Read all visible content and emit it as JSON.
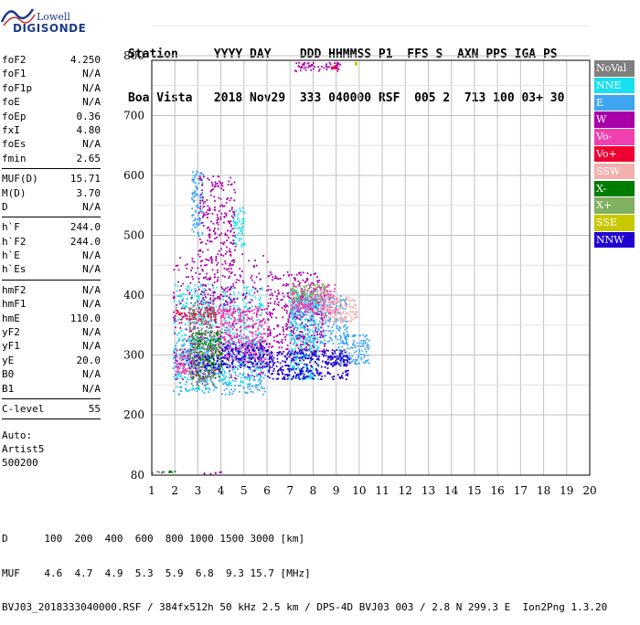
{
  "logo": {
    "line1": "Lowell",
    "line2": "DIGISONDE"
  },
  "header": {
    "line1": "Station     YYYY DAY    DDD HHMMSS P1  FFS S  AXN PPS IGA PS",
    "line2": "Boa Vista   2018 Nov29  333 040000 RSF  005 2  713 100 03+ 30"
  },
  "params_top": [
    {
      "label": "foF2",
      "value": "4.250"
    },
    {
      "label": "foF1",
      "value": "N/A"
    },
    {
      "label": "foF1p",
      "value": "N/A"
    },
    {
      "label": "foE",
      "value": "N/A"
    },
    {
      "label": "foEp",
      "value": "0.36"
    },
    {
      "label": "fxI",
      "value": "4.80"
    },
    {
      "label": "foEs",
      "value": "N/A"
    },
    {
      "label": "fmin",
      "value": "2.65"
    }
  ],
  "params_muf": [
    {
      "label": "MUF(D)",
      "value": "15.71"
    },
    {
      "label": "M(D)",
      "value": "3.70"
    },
    {
      "label": "D",
      "value": "N/A"
    }
  ],
  "params_h": [
    {
      "label": "h`F",
      "value": "244.0"
    },
    {
      "label": "h`F2",
      "value": "244.0"
    },
    {
      "label": "h`E",
      "value": "N/A"
    },
    {
      "label": "h`Es",
      "value": "N/A"
    }
  ],
  "params_hm": [
    {
      "label": "hmF2",
      "value": "N/A"
    },
    {
      "label": "hmF1",
      "value": "N/A"
    },
    {
      "label": "hmE",
      "value": "110.0"
    },
    {
      "label": "yF2",
      "value": "N/A"
    },
    {
      "label": "yF1",
      "value": "N/A"
    },
    {
      "label": "yE",
      "value": "20.0"
    },
    {
      "label": "B0",
      "value": "N/A"
    },
    {
      "label": "B1",
      "value": "N/A"
    }
  ],
  "params_c": [
    {
      "label": "C-level",
      "value": "55"
    }
  ],
  "auto": {
    "line1": "Auto:",
    "line2": "Artist5",
    "line3": "500200"
  },
  "legend": [
    {
      "label": "NoVal",
      "color": "#7f7f7f"
    },
    {
      "label": "NNE",
      "color": "#18e0f0"
    },
    {
      "label": "E",
      "color": "#3ea6f0"
    },
    {
      "label": "W",
      "color": "#a800a8"
    },
    {
      "label": "Vo-",
      "color": "#f040b0"
    },
    {
      "label": "Vo+",
      "color": "#ee0030"
    },
    {
      "label": "SSW",
      "color": "#f2b0b0"
    },
    {
      "label": "X-",
      "color": "#007c00"
    },
    {
      "label": "X+",
      "color": "#80b060"
    },
    {
      "label": "SSE",
      "color": "#c8c800"
    },
    {
      "label": "NNW",
      "color": "#2000d0"
    }
  ],
  "footer": {
    "line1": "D      100  200  400  600  800 1000 1500 3000 [km]",
    "line2": "MUF    4.6  4.7  4.9  5.3  5.9  6.8  9.3 15.7 [MHz]",
    "line3": "BVJ03_2018333040000.RSF / 384fx512h 50 kHz 2.5 km / DPS-4D BVJ03 003 / 2.8 N 299.3 E  Ion2Png 1.3.20"
  },
  "chart_data": {
    "type": "scatter",
    "title": "",
    "xlabel": "",
    "ylabel": "",
    "xlim": [
      1,
      20
    ],
    "ylim": [
      80,
      900
    ],
    "grid": true,
    "x_ticks": [
      1,
      2,
      3,
      4,
      5,
      6,
      7,
      8,
      9,
      10,
      11,
      12,
      13,
      14,
      15,
      16,
      17,
      18,
      19,
      20
    ],
    "y_ticks": [
      80,
      200,
      300,
      400,
      500,
      600,
      700,
      800,
      900
    ],
    "series": [
      {
        "name": "NNE",
        "color": "#18e0f0",
        "clusters": [
          {
            "x": [
              1.9,
              3.8
            ],
            "y": [
              240,
              420
            ]
          },
          {
            "x": [
              4.0,
              5.8
            ],
            "y": [
              250,
              420
            ]
          },
          {
            "x": [
              6.9,
              8.2
            ],
            "y": [
              260,
              410
            ]
          },
          {
            "x": [
              4.5,
              5.0
            ],
            "y": [
              480,
              550
            ]
          }
        ]
      },
      {
        "name": "E",
        "color": "#3ea6f0",
        "clusters": [
          {
            "x": [
              1.9,
              5.9
            ],
            "y": [
              235,
              330
            ]
          },
          {
            "x": [
              7.0,
              9.5
            ],
            "y": [
              320,
              400
            ]
          },
          {
            "x": [
              9.0,
              10.4
            ],
            "y": [
              285,
              335
            ]
          },
          {
            "x": [
              2.7,
              3.2
            ],
            "y": [
              500,
              610
            ]
          }
        ]
      },
      {
        "name": "W",
        "color": "#a800a8",
        "clusters": [
          {
            "x": [
              1.9,
              6.0
            ],
            "y": [
              260,
              470
            ]
          },
          {
            "x": [
              3.0,
              4.6
            ],
            "y": [
              370,
              600
            ]
          },
          {
            "x": [
              6.0,
              8.5
            ],
            "y": [
              300,
              440
            ]
          },
          {
            "x": [
              7.0,
              9.2
            ],
            "y": [
              775,
              790
            ]
          },
          {
            "x": [
              2.9,
              4.0
            ],
            "y": [
              83,
              88
            ]
          }
        ]
      },
      {
        "name": "Vo-",
        "color": "#f040b0",
        "clusters": [
          {
            "x": [
              3.8,
              5.9
            ],
            "y": [
              290,
              380
            ]
          },
          {
            "x": [
              2.0,
              3.0
            ],
            "y": [
              270,
              300
            ]
          },
          {
            "x": [
              7.0,
              9.0
            ],
            "y": [
              370,
              420
            ]
          }
        ]
      },
      {
        "name": "Vo+",
        "color": "#ee0030",
        "clusters": [
          {
            "x": [
              2.0,
              3.8
            ],
            "y": [
              360,
              380
            ]
          },
          {
            "x": [
              8.8,
              9.0
            ],
            "y": [
              780,
              785
            ]
          }
        ]
      },
      {
        "name": "SSW",
        "color": "#f2b0b0",
        "clusters": [
          {
            "x": [
              8.3,
              9.9
            ],
            "y": [
              355,
              400
            ]
          }
        ]
      },
      {
        "name": "X-",
        "color": "#007c00",
        "clusters": [
          {
            "x": [
              2.7,
              4.0
            ],
            "y": [
              260,
              340
            ]
          },
          {
            "x": [
              1.7,
              2.0
            ],
            "y": [
              87,
              90
            ]
          }
        ]
      },
      {
        "name": "X+",
        "color": "#80b060",
        "clusters": [
          {
            "x": [
              7.0,
              8.5
            ],
            "y": [
              390,
              420
            ]
          }
        ]
      },
      {
        "name": "SSE",
        "color": "#c8c800",
        "clusters": [
          {
            "x": [
              9.8,
              9.9
            ],
            "y": [
              785,
              790
            ]
          }
        ]
      },
      {
        "name": "NNW",
        "color": "#2000d0",
        "clusters": [
          {
            "x": [
              2.5,
              4.0
            ],
            "y": [
              270,
              300
            ]
          },
          {
            "x": [
              4.0,
              6.0
            ],
            "y": [
              280,
              320
            ]
          },
          {
            "x": [
              6.0,
              9.5
            ],
            "y": [
              260,
              310
            ]
          },
          {
            "x": [
              8.5,
              9.6
            ],
            "y": [
              285,
              300
            ]
          }
        ]
      },
      {
        "name": "NoVal",
        "color": "#7f7f7f",
        "clusters": [
          {
            "x": [
              1.0,
              1.6
            ],
            "y": [
              86,
              89
            ]
          },
          {
            "x": [
              2.6,
              3.7
            ],
            "y": [
              250,
              390
            ]
          }
        ]
      }
    ]
  }
}
